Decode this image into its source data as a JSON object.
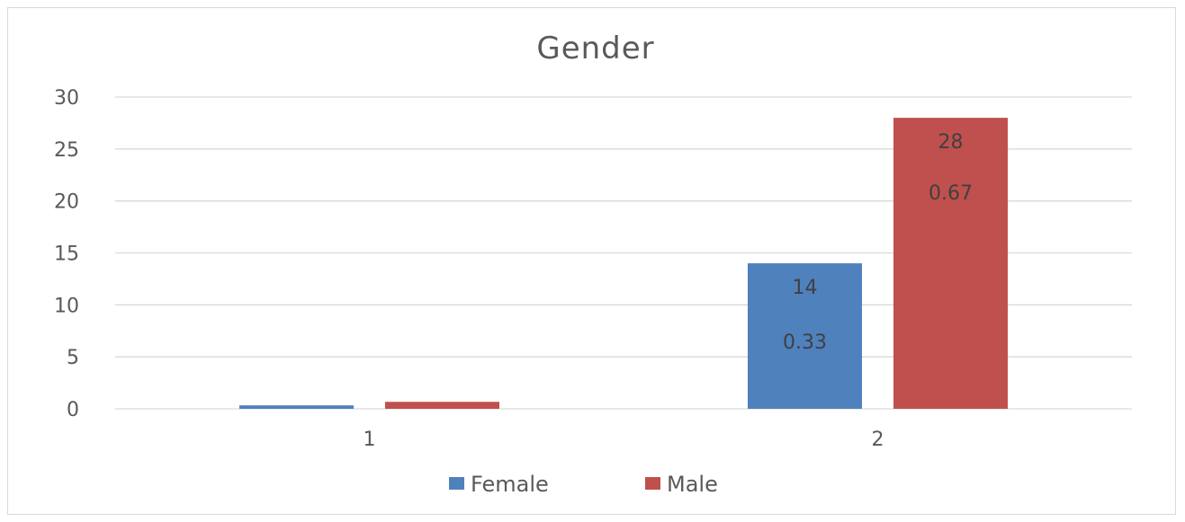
{
  "chart_data": {
    "type": "bar",
    "title": "Gender",
    "categories": [
      "1",
      "2"
    ],
    "series": [
      {
        "name": "Female",
        "color": "#4f81bd",
        "values": [
          0.33,
          14
        ],
        "data_labels": [
          "",
          "14"
        ]
      },
      {
        "name": "Male",
        "color": "#c0504d",
        "values": [
          0.67,
          28
        ],
        "data_labels": [
          "",
          "28"
        ]
      }
    ],
    "secondary_labels": [
      {
        "category": "2",
        "series": "Female",
        "text": "0.33"
      },
      {
        "category": "2",
        "series": "Male",
        "text": "0.67"
      }
    ],
    "ylim": [
      0,
      30
    ],
    "yticks": [
      "0",
      "5",
      "10",
      "15",
      "20",
      "25",
      "30"
    ],
    "grid": true,
    "legend_position": "bottom"
  }
}
